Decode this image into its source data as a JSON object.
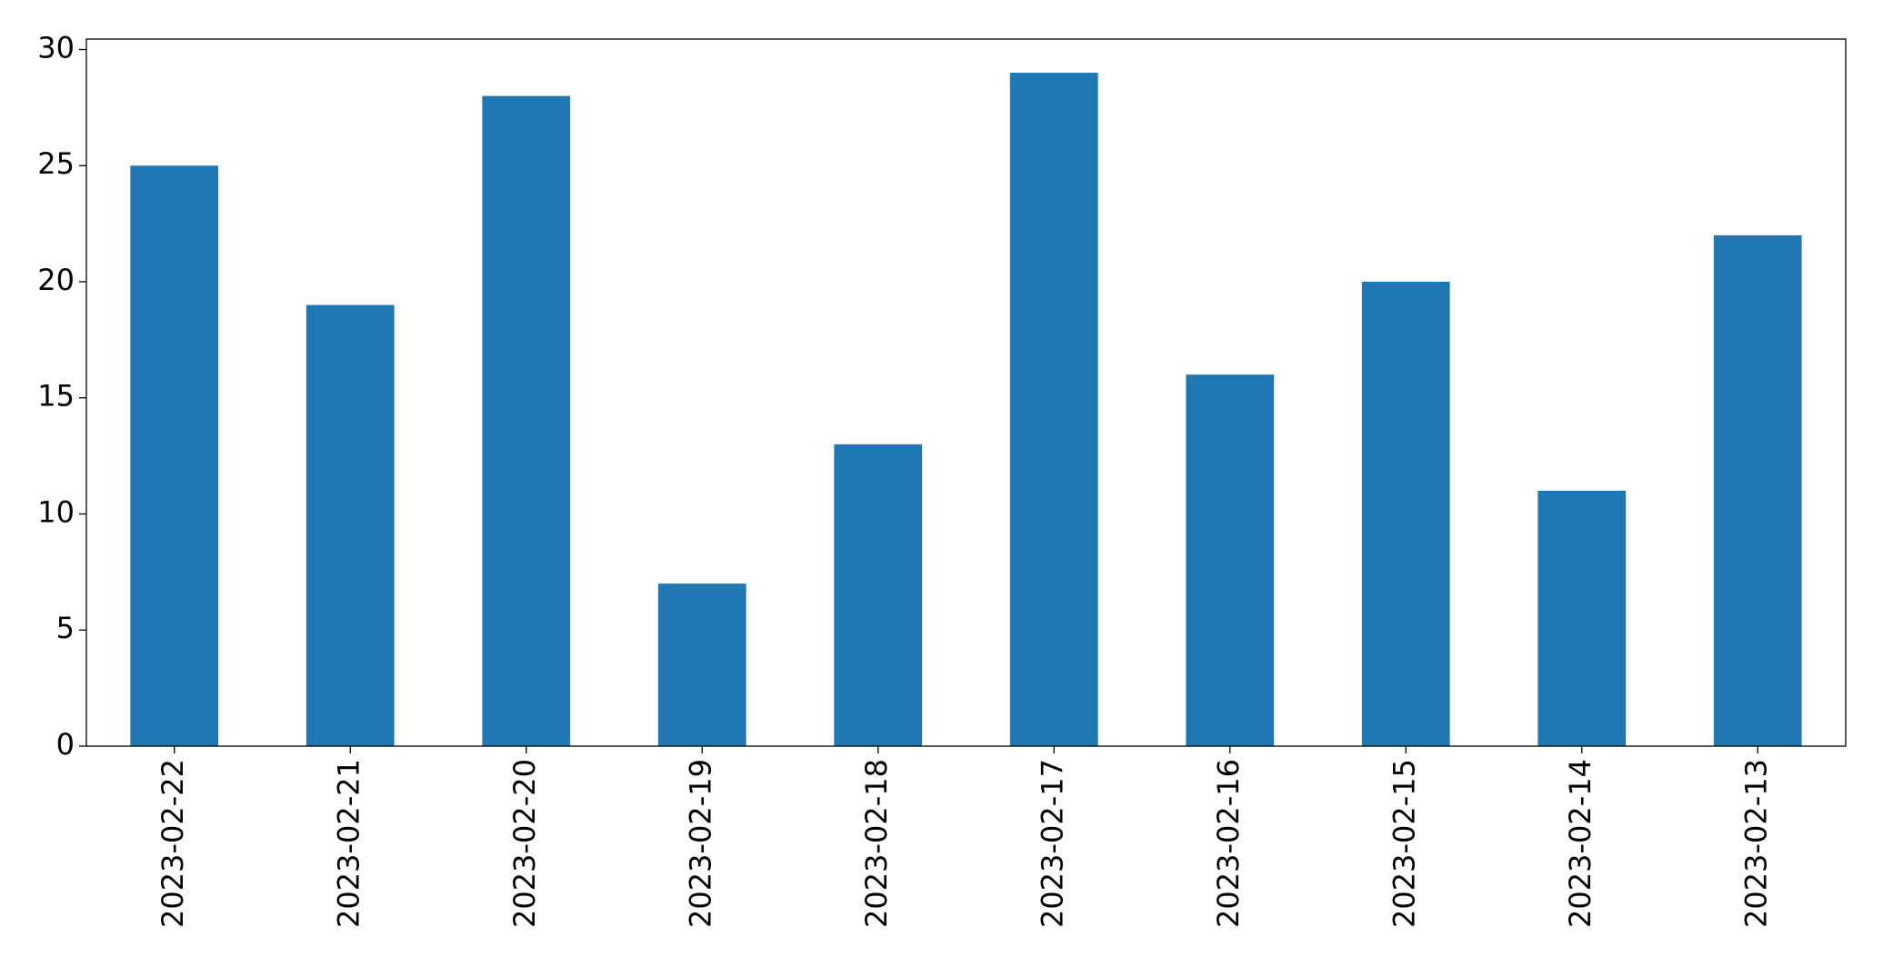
{
  "chart_data": {
    "type": "bar",
    "categories": [
      "2023-02-22",
      "2023-02-21",
      "2023-02-20",
      "2023-02-19",
      "2023-02-18",
      "2023-02-17",
      "2023-02-16",
      "2023-02-15",
      "2023-02-14",
      "2023-02-13"
    ],
    "values": [
      25,
      19,
      28,
      7,
      13,
      29,
      16,
      20,
      11,
      22
    ],
    "color": "#1f77b4",
    "ylim": [
      0,
      30.45
    ],
    "yticks": [
      0,
      5,
      10,
      15,
      20,
      25,
      30
    ],
    "grid": false
  }
}
